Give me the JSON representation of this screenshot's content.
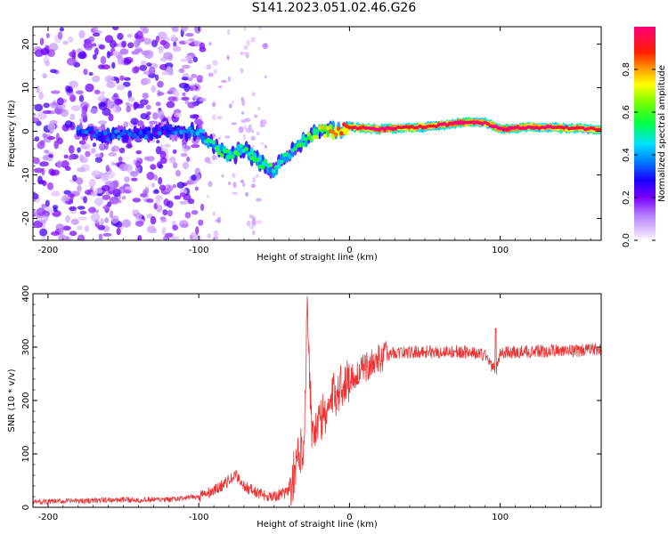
{
  "title": "S141.2023.051.02.46.G26",
  "chart_data": [
    {
      "type": "heatmap",
      "name": "spectrogram",
      "xlabel": "Height of straight line (km)",
      "ylabel": "Frequency (Hz)",
      "xlim": [
        -210,
        167
      ],
      "ylim": [
        -25,
        24
      ],
      "xticks": [
        -200,
        -100,
        0,
        100
      ],
      "yticks": [
        -20,
        -10,
        0,
        10,
        20
      ],
      "colorbar": {
        "label": "Normalized spectral amplitude",
        "range": [
          0.0,
          1.0
        ],
        "ticks": [
          0.0,
          0.2,
          0.4,
          0.6,
          0.8
        ]
      },
      "noise_region": {
        "x": [
          -210,
          -105
        ],
        "freq_range": [
          -25,
          24
        ],
        "amplitude": "low (0.1-0.3)"
      },
      "ridge": [
        {
          "x": -180,
          "f": 0,
          "a": 0.3
        },
        {
          "x": -160,
          "f": -1,
          "a": 0.3
        },
        {
          "x": -120,
          "f": 0,
          "a": 0.3
        },
        {
          "x": -100,
          "f": 0,
          "a": 0.35
        },
        {
          "x": -90,
          "f": -3,
          "a": 0.45
        },
        {
          "x": -80,
          "f": -6,
          "a": 0.5
        },
        {
          "x": -70,
          "f": -4,
          "a": 0.45
        },
        {
          "x": -60,
          "f": -7,
          "a": 0.5
        },
        {
          "x": -50,
          "f": -9,
          "a": 0.45
        },
        {
          "x": -40,
          "f": -5,
          "a": 0.4
        },
        {
          "x": -30,
          "f": -2,
          "a": 0.5
        },
        {
          "x": -20,
          "f": 0,
          "a": 0.6
        },
        {
          "x": -10,
          "f": 0,
          "a": 0.75
        },
        {
          "x": 0,
          "f": 1,
          "a": 0.8
        },
        {
          "x": 20,
          "f": 0.5,
          "a": 0.9
        },
        {
          "x": 50,
          "f": 1,
          "a": 0.8
        },
        {
          "x": 75,
          "f": 2,
          "a": 0.9
        },
        {
          "x": 90,
          "f": 2,
          "a": 0.85
        },
        {
          "x": 100,
          "f": 0.5,
          "a": 0.9
        },
        {
          "x": 120,
          "f": 1,
          "a": 0.85
        },
        {
          "x": 167,
          "f": 0.5,
          "a": 0.8
        }
      ]
    },
    {
      "type": "line",
      "name": "snr",
      "xlabel": "Height of straight line (km)",
      "ylabel": "SNR (10 * v/v)",
      "xlim": [
        -210,
        167
      ],
      "ylim": [
        0,
        400
      ],
      "xticks": [
        -200,
        -100,
        0,
        100
      ],
      "yticks": [
        0,
        100,
        200,
        300,
        400
      ],
      "color": "#ee3333",
      "x": [
        -210,
        -180,
        -150,
        -120,
        -100,
        -90,
        -80,
        -75,
        -70,
        -60,
        -50,
        -40,
        -35,
        -30,
        -28,
        -25,
        -20,
        -15,
        -10,
        -5,
        0,
        10,
        20,
        30,
        40,
        50,
        60,
        70,
        80,
        90,
        97,
        100,
        110,
        120,
        130,
        140,
        150,
        160,
        167
      ],
      "y": [
        10,
        12,
        14,
        14,
        20,
        30,
        50,
        60,
        40,
        25,
        20,
        30,
        80,
        130,
        395,
        140,
        160,
        180,
        210,
        230,
        240,
        260,
        280,
        290,
        290,
        292,
        290,
        292,
        290,
        285,
        255,
        290,
        290,
        292,
        292,
        295,
        293,
        295,
        295
      ]
    }
  ]
}
